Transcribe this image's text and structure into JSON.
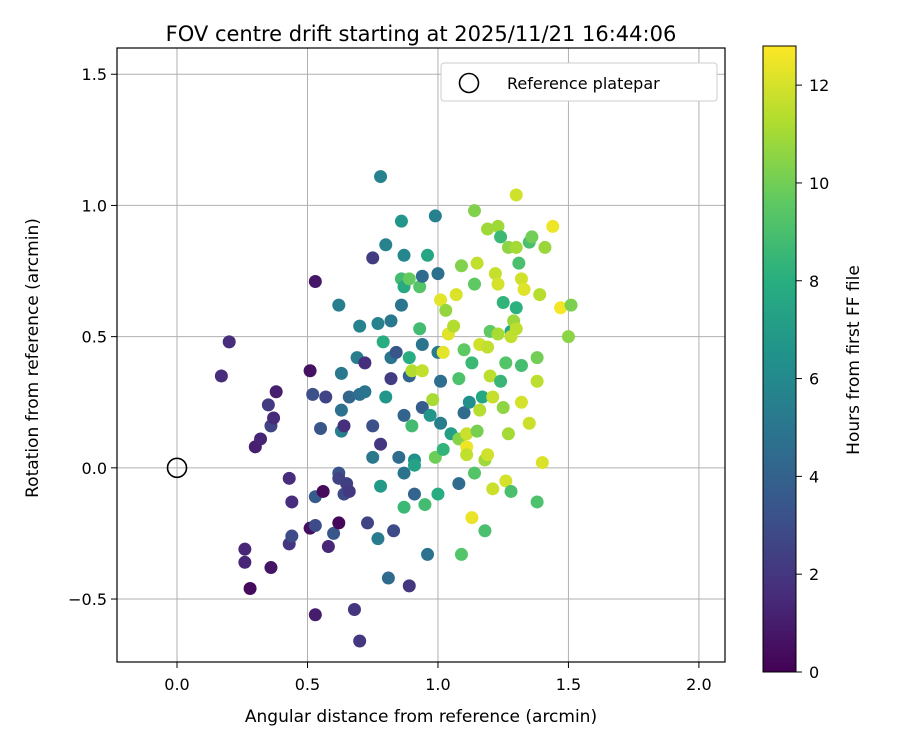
{
  "chart_data": {
    "type": "scatter",
    "title": "FOV centre drift starting at 2025/11/21 16:44:06",
    "xlabel": "Angular distance from reference (arcmin)",
    "ylabel": "Rotation from reference (arcmin)",
    "xlim": [
      -0.23,
      2.1
    ],
    "ylim": [
      -0.74,
      1.6
    ],
    "xticks": [
      "0.0",
      "0.5",
      "1.0",
      "1.5",
      "2.0"
    ],
    "xtick_values": [
      0,
      0.5,
      1,
      1.5,
      2
    ],
    "yticks": [
      "−0.5",
      "0.0",
      "0.5",
      "1.0",
      "1.5"
    ],
    "ytick_values": [
      -0.5,
      0,
      0.5,
      1,
      1.5
    ],
    "grid": true,
    "legend": {
      "position": "top-right",
      "entries": [
        "Reference platepar"
      ]
    },
    "reference_point": {
      "x": 0.0,
      "y": 0.0
    },
    "colorbar": {
      "label": "Hours from first FF file",
      "colormap": "viridis",
      "range": [
        0,
        12.8
      ],
      "ticks": [
        "0",
        "2",
        "4",
        "6",
        "8",
        "10",
        "12"
      ],
      "tick_values": [
        0,
        2,
        4,
        6,
        8,
        10,
        12
      ]
    },
    "points": [
      [
        0.17,
        0.35,
        1.6
      ],
      [
        0.2,
        0.48,
        1.6
      ],
      [
        0.26,
        -0.31,
        1.4
      ],
      [
        0.26,
        -0.36,
        1.4
      ],
      [
        0.28,
        -0.46,
        0.4
      ],
      [
        0.3,
        0.08,
        1.1
      ],
      [
        0.32,
        0.11,
        1.3
      ],
      [
        0.35,
        0.24,
        2.2
      ],
      [
        0.36,
        0.16,
        2.6
      ],
      [
        0.36,
        -0.38,
        0.7
      ],
      [
        0.37,
        0.19,
        1.5
      ],
      [
        0.38,
        0.29,
        1.1
      ],
      [
        0.43,
        -0.04,
        1.6
      ],
      [
        0.43,
        -0.29,
        1.9
      ],
      [
        0.44,
        -0.26,
        2.9
      ],
      [
        0.44,
        -0.13,
        1.6
      ],
      [
        0.51,
        0.37,
        0.6
      ],
      [
        0.51,
        -0.23,
        0.5
      ],
      [
        0.52,
        0.28,
        3.1
      ],
      [
        0.53,
        0.71,
        0.8
      ],
      [
        0.53,
        -0.56,
        1.0
      ],
      [
        0.53,
        -0.11,
        3.6
      ],
      [
        0.53,
        -0.22,
        2.9
      ],
      [
        0.55,
        0.15,
        3.4
      ],
      [
        0.56,
        -0.09,
        0.4
      ],
      [
        0.57,
        0.27,
        2.6
      ],
      [
        0.58,
        -0.3,
        1.4
      ],
      [
        0.6,
        -0.25,
        3.4
      ],
      [
        0.62,
        0.62,
        5.4
      ],
      [
        0.62,
        -0.02,
        3.3
      ],
      [
        0.62,
        -0.04,
        2.5
      ],
      [
        0.62,
        -0.21,
        0.2
      ],
      [
        0.63,
        0.22,
        4.8
      ],
      [
        0.63,
        0.36,
        5.1
      ],
      [
        0.63,
        0.14,
        5.4
      ],
      [
        0.64,
        -0.1,
        2.9
      ],
      [
        0.64,
        0.16,
        1.7
      ],
      [
        0.65,
        -0.06,
        2.4
      ],
      [
        0.66,
        -0.09,
        2.1
      ],
      [
        0.66,
        0.27,
        4.2
      ],
      [
        0.68,
        -0.54,
        1.9
      ],
      [
        0.69,
        0.42,
        5.4
      ],
      [
        0.7,
        -0.66,
        2.0
      ],
      [
        0.7,
        0.54,
        5.7
      ],
      [
        0.7,
        0.28,
        4.6
      ],
      [
        0.72,
        0.29,
        4.9
      ],
      [
        0.72,
        0.4,
        1.7
      ],
      [
        0.73,
        -0.21,
        2.6
      ],
      [
        0.75,
        0.8,
        2.3
      ],
      [
        0.75,
        0.04,
        5.1
      ],
      [
        0.75,
        0.16,
        3.1
      ],
      [
        0.77,
        0.55,
        5.6
      ],
      [
        0.77,
        -0.27,
        5.3
      ],
      [
        0.78,
        1.11,
        5.7
      ],
      [
        0.78,
        -0.07,
        6.9
      ],
      [
        0.78,
        0.09,
        2.0
      ],
      [
        0.79,
        0.48,
        7.9
      ],
      [
        0.8,
        0.85,
        5.6
      ],
      [
        0.8,
        0.27,
        6.7
      ],
      [
        0.81,
        -0.42,
        4.4
      ],
      [
        0.82,
        0.56,
        5.1
      ],
      [
        0.82,
        0.34,
        2.3
      ],
      [
        0.82,
        0.42,
        5.0
      ],
      [
        0.83,
        -0.24,
        2.9
      ],
      [
        0.84,
        0.44,
        3.4
      ],
      [
        0.85,
        0.04,
        4.5
      ],
      [
        0.86,
        0.94,
        6.7
      ],
      [
        0.86,
        0.72,
        8.8
      ],
      [
        0.86,
        0.62,
        5.0
      ],
      [
        0.87,
        0.81,
        5.9
      ],
      [
        0.87,
        -0.15,
        8.6
      ],
      [
        0.87,
        0.69,
        7.7
      ],
      [
        0.87,
        0.2,
        4.1
      ],
      [
        0.87,
        -0.02,
        4.9
      ],
      [
        0.89,
        0.72,
        9.7
      ],
      [
        0.89,
        0.35,
        4.1
      ],
      [
        0.89,
        -0.45,
        2.0
      ],
      [
        0.89,
        0.42,
        7.9
      ],
      [
        0.9,
        0.37,
        11.3
      ],
      [
        0.9,
        0.16,
        8.8
      ],
      [
        0.91,
        0.03,
        6.4
      ],
      [
        0.91,
        -0.1,
        4.1
      ],
      [
        0.91,
        0.01,
        7.3
      ],
      [
        0.93,
        0.69,
        9.3
      ],
      [
        0.93,
        0.53,
        8.8
      ],
      [
        0.94,
        0.23,
        3.7
      ],
      [
        0.94,
        0.47,
        4.9
      ],
      [
        0.94,
        0.37,
        11.6
      ],
      [
        0.94,
        0.73,
        4.5
      ],
      [
        0.95,
        -0.14,
        8.8
      ],
      [
        0.96,
        0.81,
        7.5
      ],
      [
        0.96,
        -0.33,
        4.8
      ],
      [
        0.97,
        0.2,
        6.7
      ],
      [
        0.98,
        0.26,
        11.1
      ],
      [
        0.99,
        0.96,
        5.5
      ],
      [
        0.99,
        0.04,
        9.9
      ],
      [
        1.0,
        0.44,
        5.3
      ],
      [
        1.0,
        0.74,
        4.7
      ],
      [
        1.0,
        -0.1,
        7.9
      ],
      [
        1.01,
        0.17,
        5.4
      ],
      [
        1.01,
        0.64,
        12.3
      ],
      [
        1.01,
        0.33,
        4.6
      ],
      [
        1.02,
        0.44,
        12.3
      ],
      [
        1.02,
        0.07,
        8.3
      ],
      [
        1.03,
        0.6,
        10.7
      ],
      [
        1.04,
        0.51,
        12.2
      ],
      [
        1.05,
        0.13,
        7.2
      ],
      [
        1.06,
        0.54,
        11.3
      ],
      [
        1.07,
        0.66,
        12.1
      ],
      [
        1.08,
        0.34,
        9.1
      ],
      [
        1.08,
        -0.06,
        4.5
      ],
      [
        1.08,
        0.11,
        10.4
      ],
      [
        1.09,
        0.77,
        10.3
      ],
      [
        1.09,
        -0.33,
        9.3
      ],
      [
        1.1,
        0.21,
        4.4
      ],
      [
        1.1,
        0.45,
        9.6
      ],
      [
        1.11,
        0.13,
        11.8
      ],
      [
        1.11,
        0.08,
        12.5
      ],
      [
        1.11,
        0.05,
        11.6
      ],
      [
        1.12,
        0.25,
        6.3
      ],
      [
        1.13,
        0.4,
        8.6
      ],
      [
        1.13,
        -0.19,
        12.4
      ],
      [
        1.14,
        0.98,
        10.3
      ],
      [
        1.14,
        0.7,
        9.6
      ],
      [
        1.14,
        -0.02,
        9.3
      ],
      [
        1.15,
        0.78,
        11.6
      ],
      [
        1.15,
        0.14,
        10.1
      ],
      [
        1.16,
        0.22,
        11.4
      ],
      [
        1.16,
        0.47,
        11.9
      ],
      [
        1.17,
        0.27,
        7.6
      ],
      [
        1.18,
        0.03,
        10.9
      ],
      [
        1.18,
        -0.24,
        9.0
      ],
      [
        1.19,
        0.05,
        11.9
      ],
      [
        1.19,
        0.91,
        10.9
      ],
      [
        1.19,
        0.46,
        11.6
      ],
      [
        1.2,
        0.35,
        11.5
      ],
      [
        1.2,
        0.52,
        9.6
      ],
      [
        1.21,
        -0.08,
        11.8
      ],
      [
        1.21,
        0.27,
        11.7
      ],
      [
        1.22,
        0.74,
        11.7
      ],
      [
        1.23,
        0.92,
        10.9
      ],
      [
        1.23,
        0.7,
        12.0
      ],
      [
        1.23,
        0.51,
        11.1
      ],
      [
        1.24,
        0.33,
        8.5
      ],
      [
        1.24,
        0.88,
        8.6
      ],
      [
        1.25,
        0.63,
        8.3
      ],
      [
        1.25,
        0.23,
        10.6
      ],
      [
        1.26,
        0.4,
        9.3
      ],
      [
        1.26,
        -0.05,
        12.0
      ],
      [
        1.27,
        0.84,
        10.6
      ],
      [
        1.27,
        0.13,
        11.0
      ],
      [
        1.28,
        0.52,
        7.5
      ],
      [
        1.28,
        0.5,
        11.6
      ],
      [
        1.28,
        -0.09,
        9.0
      ],
      [
        1.29,
        0.56,
        10.8
      ],
      [
        1.3,
        0.84,
        11.0
      ],
      [
        1.3,
        1.04,
        11.9
      ],
      [
        1.3,
        0.61,
        8.1
      ],
      [
        1.3,
        0.53,
        11.5
      ],
      [
        1.31,
        0.78,
        9.0
      ],
      [
        1.32,
        0.72,
        11.9
      ],
      [
        1.32,
        0.39,
        8.9
      ],
      [
        1.32,
        0.25,
        12.0
      ],
      [
        1.33,
        0.68,
        12.2
      ],
      [
        1.35,
        0.17,
        11.8
      ],
      [
        1.35,
        0.86,
        9.0
      ],
      [
        1.36,
        0.88,
        10.0
      ],
      [
        1.38,
        -0.13,
        9.1
      ],
      [
        1.38,
        0.33,
        11.5
      ],
      [
        1.38,
        0.42,
        10.0
      ],
      [
        1.39,
        0.66,
        11.4
      ],
      [
        1.4,
        0.02,
        12.1
      ],
      [
        1.41,
        0.84,
        10.8
      ],
      [
        1.44,
        0.92,
        12.5
      ],
      [
        1.47,
        0.61,
        12.6
      ],
      [
        1.5,
        0.5,
        10.5
      ],
      [
        1.51,
        0.62,
        10.2
      ]
    ]
  }
}
